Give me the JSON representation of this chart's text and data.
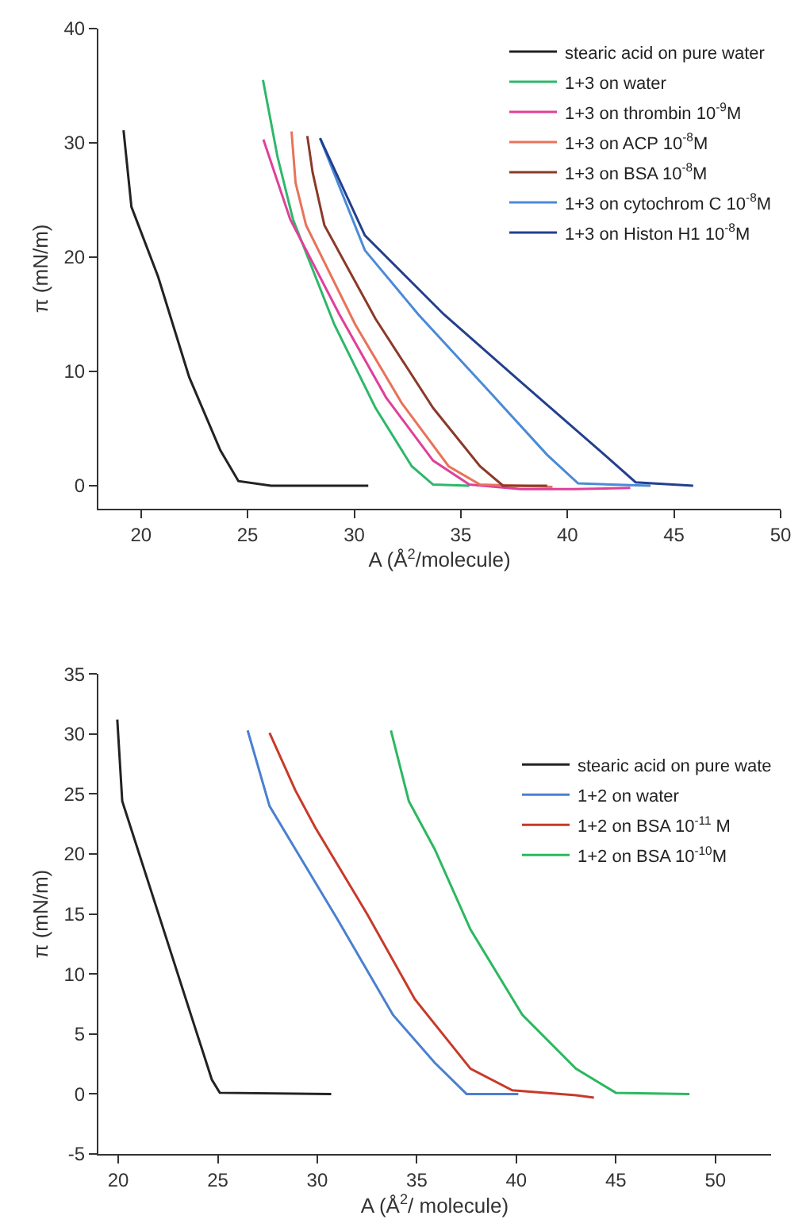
{
  "chart_data": [
    {
      "type": "line",
      "xlabel": "A (Å$^{2}$/molecule)",
      "ylabel": "π (mN/m)",
      "xlim": [
        18,
        50
      ],
      "xticks": [
        20,
        25,
        30,
        35,
        40,
        45,
        50
      ],
      "ylim": [
        -2,
        40
      ],
      "yticks": [
        0,
        10,
        20,
        30,
        40
      ],
      "legend": "top right",
      "series": [
        {
          "name": "stearic acid on pure water",
          "color": "#222222",
          "x": [
            19.18,
            19.55,
            20.8,
            22.26,
            23.72,
            24.57,
            26.1,
            30.66
          ],
          "values": [
            31.1,
            24.4,
            18.3,
            9.5,
            3.1,
            0.4,
            0,
            0
          ]
        },
        {
          "name": "1+3 on water",
          "color": "#2db86a",
          "x": [
            25.72,
            26.4,
            27.13,
            29.07,
            31.0,
            32.7,
            33.7,
            35.4
          ],
          "values": [
            35.5,
            28.8,
            23.3,
            14.1,
            6.8,
            1.7,
            0.1,
            0
          ]
        },
        {
          "name": "1+3 on thrombin 10$^{-9}$M",
          "color": "#e0409a",
          "x": [
            25.74,
            27.0,
            29.3,
            31.5,
            33.7,
            35.4,
            37.8,
            40.3,
            42.95
          ],
          "values": [
            30.3,
            23.3,
            15.0,
            7.7,
            2.2,
            0.1,
            -0.3,
            -0.3,
            -0.2
          ]
        },
        {
          "name": "1+3 on ACP 10$^{-8}$M",
          "color": "#e8735a",
          "x": [
            27.06,
            27.25,
            27.74,
            30.05,
            32.24,
            34.43,
            35.9,
            39.3
          ],
          "values": [
            31.0,
            26.5,
            22.8,
            14.1,
            7.2,
            1.7,
            0.1,
            -0.1
          ]
        },
        {
          "name": "1+3 on BSA 10$^{-8}$M",
          "color": "#8b3a2a",
          "x": [
            27.8,
            28.05,
            28.6,
            31.0,
            33.7,
            35.9,
            36.98,
            39.05
          ],
          "values": [
            30.6,
            27.4,
            22.8,
            14.6,
            6.8,
            1.7,
            0,
            0
          ]
        },
        {
          "name": "1+3 on cytochrom C 10$^{-8}$M",
          "color": "#4a8ad8",
          "x": [
            28.4,
            30.5,
            33.0,
            36.6,
            39.05,
            40.5,
            43.9
          ],
          "values": [
            30.4,
            20.6,
            15.0,
            7.7,
            2.7,
            0.2,
            0
          ]
        },
        {
          "name": "1+3 on Histon H1 10$^{-8}$M",
          "color": "#23408e",
          "x": [
            28.4,
            30.5,
            34.2,
            37.8,
            41.5,
            43.2,
            45.9
          ],
          "values": [
            30.4,
            21.9,
            15.0,
            9.1,
            3.1,
            0.3,
            0
          ]
        }
      ]
    },
    {
      "type": "line",
      "xlabel": "A (Å$^{2}$/ molecule)",
      "ylabel": "π (mN/m)",
      "xlim": [
        19,
        52.8
      ],
      "xticks": [
        20,
        25,
        30,
        35,
        40,
        45,
        50
      ],
      "ylim": [
        -5,
        35
      ],
      "yticks": [
        -5,
        0,
        5,
        10,
        15,
        20,
        25,
        30,
        35
      ],
      "legend": "top right",
      "series": [
        {
          "name": "stearic acid on pure wate",
          "color": "#222222",
          "x": [
            19.95,
            20.2,
            22.1,
            23.65,
            24.7,
            25.1,
            30.7
          ],
          "values": [
            31.2,
            24.4,
            14.6,
            6.6,
            1.2,
            0.1,
            0
          ]
        },
        {
          "name": "1+2 on water",
          "color": "#4a80d0",
          "x": [
            26.5,
            27.6,
            28.9,
            31.0,
            33.8,
            35.9,
            37.5,
            40.1
          ],
          "values": [
            30.3,
            24.0,
            20.4,
            14.6,
            6.6,
            2.6,
            0,
            0
          ]
        },
        {
          "name": "1+2 on BSA 10$^{-11}$ M",
          "color": "#c83a2a",
          "x": [
            27.6,
            28.9,
            29.9,
            32.5,
            34.9,
            37.7,
            39.8,
            43.0,
            43.9
          ],
          "values": [
            30.1,
            25.3,
            22.2,
            15.0,
            7.9,
            2.1,
            0.3,
            -0.1,
            -0.3
          ]
        },
        {
          "name": "1+2 on BSA 10$^{-10}$M",
          "color": "#2cb860",
          "x": [
            33.7,
            34.6,
            35.9,
            37.7,
            40.3,
            43.0,
            45.0,
            48.7
          ],
          "values": [
            30.3,
            24.4,
            20.4,
            13.7,
            6.6,
            2.1,
            0.1,
            0
          ]
        }
      ]
    }
  ]
}
